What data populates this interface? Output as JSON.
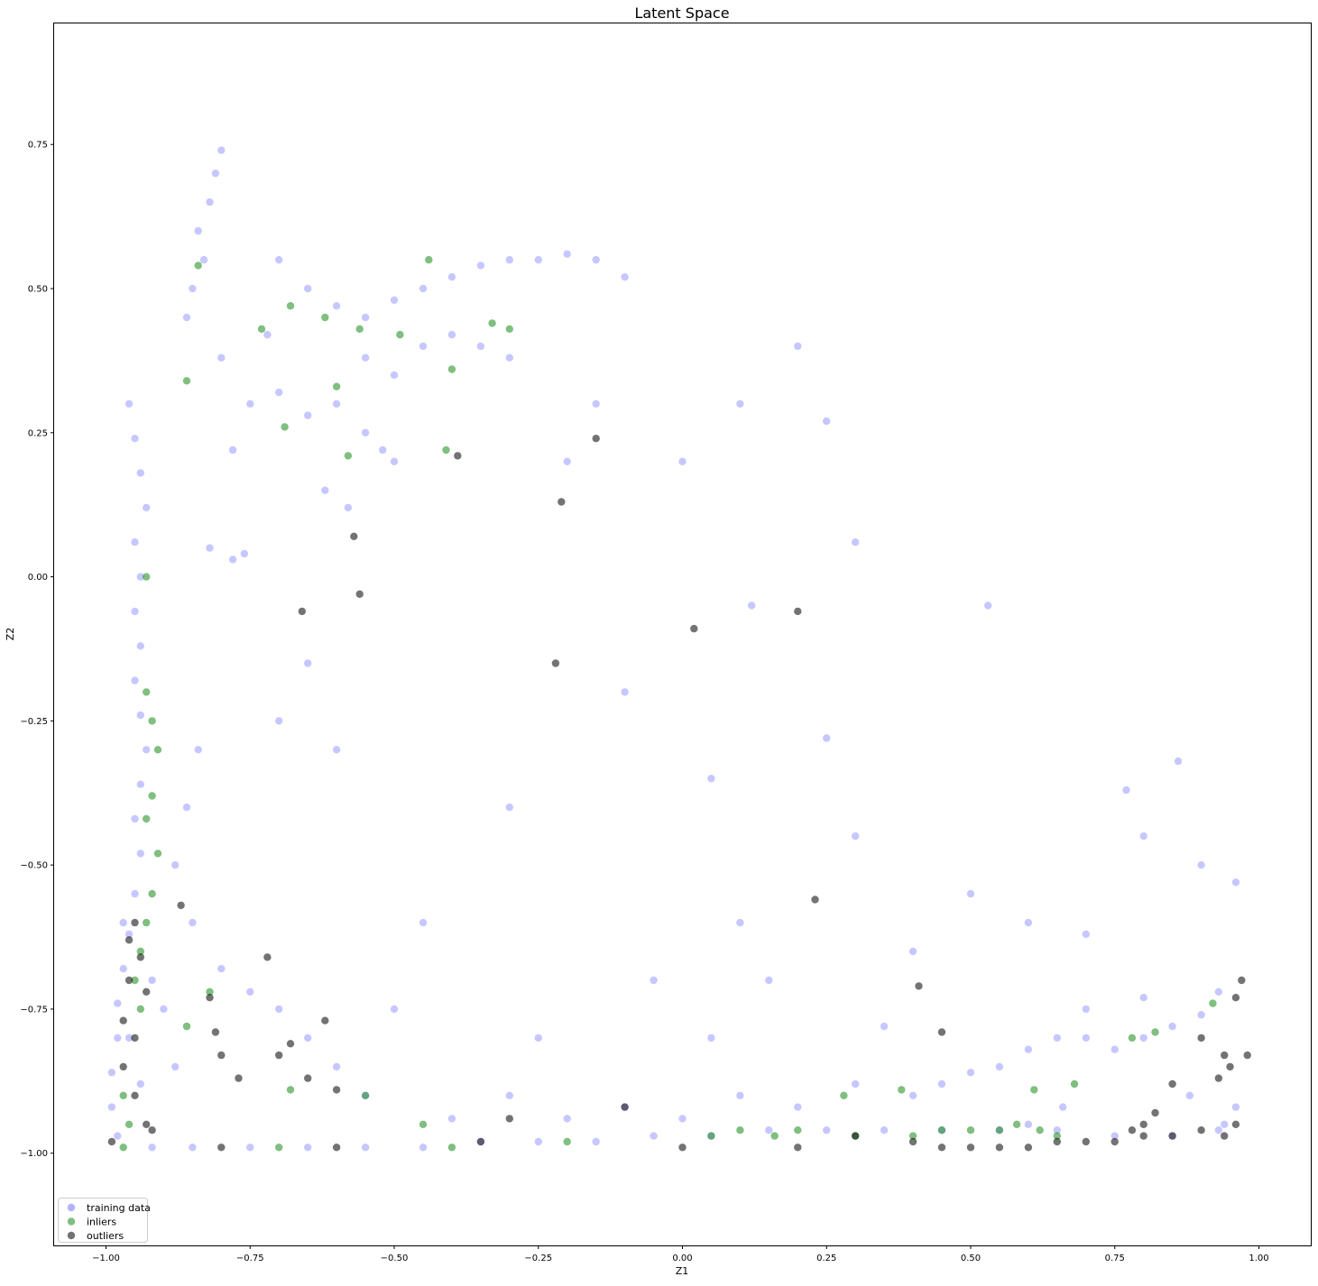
{
  "chart_data": {
    "type": "scatter",
    "title": "Latent Space",
    "xlabel": "Z1",
    "ylabel": "Z2",
    "xlim": [
      -1.09,
      1.09
    ],
    "ylim": [
      -1.16,
      0.96
    ],
    "grid": false,
    "legend_position": "bottom-left",
    "x_ticks": [
      {
        "value": -1.0,
        "label": "−1.00"
      },
      {
        "value": -0.75,
        "label": "−0.75"
      },
      {
        "value": -0.5,
        "label": "−0.50"
      },
      {
        "value": -0.25,
        "label": "−0.25"
      },
      {
        "value": 0.0,
        "label": "0.00"
      },
      {
        "value": 0.25,
        "label": "0.25"
      },
      {
        "value": 0.5,
        "label": "0.50"
      },
      {
        "value": 0.75,
        "label": "0.75"
      },
      {
        "value": 1.0,
        "label": "1.00"
      }
    ],
    "y_ticks": [
      {
        "value": -1.0,
        "label": "−1.00"
      },
      {
        "value": -0.75,
        "label": "−0.75"
      },
      {
        "value": -0.5,
        "label": "−0.50"
      },
      {
        "value": -0.25,
        "label": "−0.25"
      },
      {
        "value": 0.0,
        "label": "0.00"
      },
      {
        "value": 0.25,
        "label": "0.25"
      },
      {
        "value": 0.5,
        "label": "0.50"
      },
      {
        "value": 0.75,
        "label": "0.75"
      }
    ],
    "series": [
      {
        "name": "training data",
        "color": "#0000ff",
        "opacity": 0.22,
        "points": [
          [
            -0.96,
            0.3
          ],
          [
            -0.95,
            0.24
          ],
          [
            -0.94,
            0.18
          ],
          [
            -0.93,
            0.12
          ],
          [
            -0.95,
            0.06
          ],
          [
            -0.94,
            0.0
          ],
          [
            -0.95,
            -0.06
          ],
          [
            -0.94,
            -0.12
          ],
          [
            -0.95,
            -0.18
          ],
          [
            -0.94,
            -0.24
          ],
          [
            -0.93,
            -0.3
          ],
          [
            -0.94,
            -0.36
          ],
          [
            -0.95,
            -0.42
          ],
          [
            -0.94,
            -0.48
          ],
          [
            -0.95,
            -0.55
          ],
          [
            -0.96,
            -0.62
          ],
          [
            -0.97,
            -0.68
          ],
          [
            -0.98,
            -0.74
          ],
          [
            -0.98,
            -0.8
          ],
          [
            -0.99,
            -0.86
          ],
          [
            -0.99,
            -0.92
          ],
          [
            -0.98,
            -0.97
          ],
          [
            -0.92,
            -0.99
          ],
          [
            -0.85,
            -0.99
          ],
          [
            -0.75,
            -0.99
          ],
          [
            -0.65,
            -0.99
          ],
          [
            -0.55,
            -0.99
          ],
          [
            -0.45,
            -0.99
          ],
          [
            -0.35,
            -0.98
          ],
          [
            -0.25,
            -0.98
          ],
          [
            -0.15,
            -0.98
          ],
          [
            -0.05,
            -0.97
          ],
          [
            0.05,
            -0.97
          ],
          [
            0.15,
            -0.96
          ],
          [
            0.25,
            -0.96
          ],
          [
            0.35,
            -0.96
          ],
          [
            0.45,
            -0.96
          ],
          [
            0.55,
            -0.96
          ],
          [
            0.65,
            -0.96
          ],
          [
            0.75,
            -0.97
          ],
          [
            0.85,
            -0.97
          ],
          [
            0.93,
            -0.96
          ],
          [
            0.96,
            -0.92
          ],
          [
            -0.84,
            0.6
          ],
          [
            -0.83,
            0.55
          ],
          [
            -0.85,
            0.5
          ],
          [
            -0.86,
            0.45
          ],
          [
            -0.82,
            0.65
          ],
          [
            -0.81,
            0.7
          ],
          [
            -0.8,
            0.74
          ],
          [
            -0.7,
            0.55
          ],
          [
            -0.65,
            0.5
          ],
          [
            -0.6,
            0.47
          ],
          [
            -0.55,
            0.45
          ],
          [
            -0.5,
            0.48
          ],
          [
            -0.45,
            0.5
          ],
          [
            -0.4,
            0.52
          ],
          [
            -0.35,
            0.54
          ],
          [
            -0.3,
            0.55
          ],
          [
            -0.25,
            0.55
          ],
          [
            -0.2,
            0.56
          ],
          [
            -0.15,
            0.55
          ],
          [
            -0.1,
            0.52
          ],
          [
            -0.55,
            0.38
          ],
          [
            -0.5,
            0.35
          ],
          [
            -0.45,
            0.4
          ],
          [
            -0.4,
            0.42
          ],
          [
            -0.35,
            0.4
          ],
          [
            -0.3,
            0.38
          ],
          [
            -0.52,
            0.22
          ],
          [
            -0.5,
            0.2
          ],
          [
            -0.55,
            0.25
          ],
          [
            -0.6,
            0.3
          ],
          [
            -0.65,
            0.28
          ],
          [
            -0.7,
            0.32
          ],
          [
            -0.75,
            0.3
          ],
          [
            -0.78,
            0.22
          ],
          [
            -0.8,
            0.38
          ],
          [
            -0.72,
            0.42
          ],
          [
            -0.62,
            0.15
          ],
          [
            -0.58,
            0.12
          ],
          [
            -0.82,
            0.05
          ],
          [
            -0.78,
            0.03
          ],
          [
            -0.76,
            0.04
          ],
          [
            -0.85,
            -0.6
          ],
          [
            -0.8,
            -0.68
          ],
          [
            -0.75,
            -0.72
          ],
          [
            -0.7,
            -0.75
          ],
          [
            -0.65,
            -0.8
          ],
          [
            -0.6,
            -0.85
          ],
          [
            -0.55,
            -0.9
          ],
          [
            -0.88,
            -0.5
          ],
          [
            -0.86,
            -0.4
          ],
          [
            -0.84,
            -0.3
          ],
          [
            0.55,
            -0.85
          ],
          [
            0.6,
            -0.82
          ],
          [
            0.65,
            -0.8
          ],
          [
            0.7,
            -0.8
          ],
          [
            0.75,
            -0.82
          ],
          [
            0.8,
            -0.8
          ],
          [
            0.85,
            -0.78
          ],
          [
            0.9,
            -0.76
          ],
          [
            0.93,
            -0.72
          ],
          [
            0.7,
            -0.75
          ],
          [
            0.8,
            -0.73
          ],
          [
            0.5,
            -0.86
          ],
          [
            0.45,
            -0.88
          ],
          [
            0.4,
            -0.9
          ],
          [
            0.2,
            -0.92
          ],
          [
            0.0,
            -0.94
          ],
          [
            -0.2,
            -0.94
          ],
          [
            -0.4,
            -0.94
          ],
          [
            -0.3,
            -0.9
          ],
          [
            -0.1,
            -0.92
          ],
          [
            0.1,
            -0.9
          ],
          [
            0.3,
            -0.88
          ],
          [
            0.25,
            -0.28
          ],
          [
            0.12,
            -0.05
          ],
          [
            0.05,
            -0.35
          ],
          [
            -0.1,
            -0.2
          ],
          [
            -0.3,
            -0.4
          ],
          [
            -0.45,
            -0.6
          ],
          [
            0.1,
            -0.6
          ],
          [
            0.3,
            -0.45
          ],
          [
            0.5,
            -0.55
          ],
          [
            0.7,
            -0.62
          ],
          [
            0.8,
            -0.45
          ],
          [
            0.9,
            -0.5
          ],
          [
            -0.2,
            0.2
          ],
          [
            -0.15,
            0.3
          ],
          [
            0.0,
            0.2
          ],
          [
            0.25,
            0.27
          ],
          [
            0.3,
            0.06
          ],
          [
            0.53,
            -0.05
          ],
          [
            0.2,
            0.4
          ],
          [
            0.1,
            0.3
          ],
          [
            -0.65,
            -0.15
          ],
          [
            -0.6,
            -0.3
          ],
          [
            -0.7,
            -0.25
          ],
          [
            0.4,
            -0.65
          ],
          [
            0.6,
            -0.6
          ],
          [
            0.15,
            -0.7
          ],
          [
            -0.05,
            -0.7
          ],
          [
            0.35,
            -0.78
          ],
          [
            0.05,
            -0.8
          ],
          [
            -0.25,
            -0.8
          ],
          [
            -0.5,
            -0.75
          ],
          [
            0.86,
            -0.32
          ],
          [
            0.77,
            -0.37
          ],
          [
            0.96,
            -0.53
          ],
          [
            -0.92,
            -0.7
          ],
          [
            -0.96,
            -0.8
          ],
          [
            -0.94,
            -0.88
          ],
          [
            -0.97,
            -0.6
          ],
          [
            -0.9,
            -0.75
          ],
          [
            -0.88,
            -0.85
          ],
          [
            0.66,
            -0.92
          ],
          [
            0.6,
            -0.95
          ],
          [
            0.88,
            -0.9
          ],
          [
            0.94,
            -0.95
          ]
        ]
      },
      {
        "name": "inliers",
        "color": "#008000",
        "opacity": 0.5,
        "points": [
          [
            -0.93,
            -0.6
          ],
          [
            -0.92,
            -0.55
          ],
          [
            -0.94,
            -0.65
          ],
          [
            -0.91,
            -0.48
          ],
          [
            -0.93,
            -0.42
          ],
          [
            -0.92,
            -0.38
          ],
          [
            -0.95,
            -0.7
          ],
          [
            -0.94,
            -0.75
          ],
          [
            -0.91,
            -0.3
          ],
          [
            -0.92,
            -0.25
          ],
          [
            -0.93,
            -0.2
          ],
          [
            -0.96,
            -0.95
          ],
          [
            -0.97,
            -0.9
          ],
          [
            -0.73,
            0.43
          ],
          [
            -0.68,
            0.47
          ],
          [
            -0.62,
            0.45
          ],
          [
            -0.56,
            0.43
          ],
          [
            -0.49,
            0.42
          ],
          [
            -0.44,
            0.55
          ],
          [
            -0.33,
            0.44
          ],
          [
            -0.3,
            0.43
          ],
          [
            -0.4,
            0.36
          ],
          [
            -0.6,
            0.33
          ],
          [
            -0.69,
            0.26
          ],
          [
            -0.58,
            0.21
          ],
          [
            -0.41,
            0.22
          ],
          [
            -0.86,
            0.34
          ],
          [
            -0.84,
            0.54
          ],
          [
            -0.93,
            0.0
          ],
          [
            -0.68,
            -0.89
          ],
          [
            -0.55,
            -0.9
          ],
          [
            -0.45,
            -0.95
          ],
          [
            0.2,
            -0.96
          ],
          [
            0.3,
            -0.97
          ],
          [
            0.4,
            -0.97
          ],
          [
            0.45,
            -0.96
          ],
          [
            0.5,
            -0.96
          ],
          [
            0.55,
            -0.96
          ],
          [
            0.58,
            -0.95
          ],
          [
            0.62,
            -0.96
          ],
          [
            0.65,
            -0.97
          ],
          [
            0.1,
            -0.96
          ],
          [
            0.38,
            -0.89
          ],
          [
            0.28,
            -0.9
          ],
          [
            0.61,
            -0.89
          ],
          [
            0.68,
            -0.88
          ],
          [
            0.92,
            -0.74
          ],
          [
            0.78,
            -0.8
          ],
          [
            0.82,
            -0.79
          ],
          [
            -0.86,
            -0.78
          ],
          [
            -0.82,
            -0.72
          ],
          [
            -0.97,
            -0.99
          ],
          [
            -0.7,
            -0.99
          ],
          [
            -0.4,
            -0.99
          ],
          [
            -0.2,
            -0.98
          ],
          [
            0.05,
            -0.97
          ],
          [
            0.16,
            -0.97
          ]
        ]
      },
      {
        "name": "outliers",
        "color": "#000000",
        "opacity": 0.55,
        "points": [
          [
            -0.95,
            -0.6
          ],
          [
            -0.96,
            -0.63
          ],
          [
            -0.94,
            -0.66
          ],
          [
            -0.96,
            -0.7
          ],
          [
            -0.93,
            -0.72
          ],
          [
            -0.97,
            -0.77
          ],
          [
            -0.95,
            -0.8
          ],
          [
            -0.97,
            -0.85
          ],
          [
            -0.95,
            -0.9
          ],
          [
            -0.93,
            -0.95
          ],
          [
            -0.92,
            -0.96
          ],
          [
            -0.87,
            -0.57
          ],
          [
            -0.82,
            -0.73
          ],
          [
            -0.81,
            -0.79
          ],
          [
            -0.8,
            -0.83
          ],
          [
            -0.77,
            -0.87
          ],
          [
            -0.72,
            -0.66
          ],
          [
            -0.7,
            -0.83
          ],
          [
            -0.68,
            -0.81
          ],
          [
            -0.65,
            -0.87
          ],
          [
            -0.62,
            -0.77
          ],
          [
            -0.6,
            -0.89
          ],
          [
            -0.56,
            -0.03
          ],
          [
            -0.66,
            -0.06
          ],
          [
            -0.57,
            0.07
          ],
          [
            -0.39,
            0.21
          ],
          [
            -0.21,
            0.13
          ],
          [
            -0.15,
            0.24
          ],
          [
            -0.22,
            -0.15
          ],
          [
            0.02,
            -0.09
          ],
          [
            0.2,
            -0.06
          ],
          [
            0.23,
            -0.56
          ],
          [
            0.41,
            -0.71
          ],
          [
            0.45,
            -0.79
          ],
          [
            -0.1,
            -0.92
          ],
          [
            -0.3,
            -0.94
          ],
          [
            0.3,
            -0.97
          ],
          [
            0.4,
            -0.98
          ],
          [
            0.45,
            -0.99
          ],
          [
            0.5,
            -0.99
          ],
          [
            0.55,
            -0.99
          ],
          [
            0.6,
            -0.99
          ],
          [
            0.65,
            -0.98
          ],
          [
            0.7,
            -0.98
          ],
          [
            0.75,
            -0.98
          ],
          [
            0.8,
            -0.97
          ],
          [
            0.85,
            -0.97
          ],
          [
            0.9,
            -0.96
          ],
          [
            0.94,
            -0.97
          ],
          [
            0.96,
            -0.95
          ],
          [
            0.95,
            -0.85
          ],
          [
            0.93,
            -0.87
          ],
          [
            0.85,
            -0.88
          ],
          [
            0.82,
            -0.93
          ],
          [
            0.8,
            -0.95
          ],
          [
            0.78,
            -0.96
          ],
          [
            0.96,
            -0.73
          ],
          [
            0.98,
            -0.83
          ],
          [
            0.94,
            -0.83
          ],
          [
            0.9,
            -0.8
          ],
          [
            0.97,
            -0.7
          ],
          [
            -0.99,
            -0.98
          ],
          [
            -0.8,
            -0.99
          ],
          [
            -0.6,
            -0.99
          ],
          [
            -0.35,
            -0.98
          ],
          [
            0.0,
            -0.99
          ],
          [
            0.2,
            -0.99
          ]
        ]
      }
    ]
  }
}
